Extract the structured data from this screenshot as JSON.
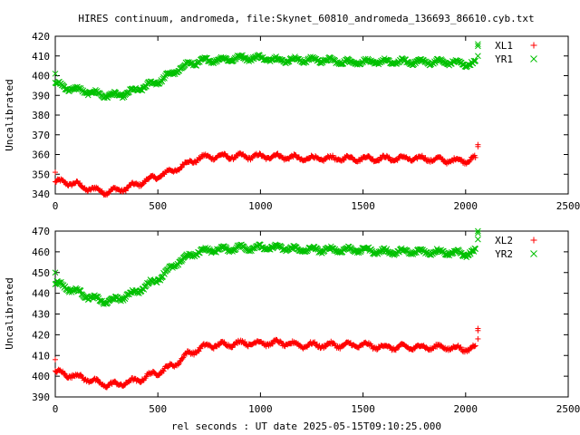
{
  "chart_data": {
    "title": "HIRES continuum, andromeda, file:Skynet_60810_andromeda_136693_86610.cyb.txt",
    "xlabel": "rel seconds : UT date 2025-05-15T09:10:25.000",
    "panels": [
      {
        "type": "scatter",
        "ylabel": "Uncalibrated",
        "xlim": [
          0,
          2500
        ],
        "ylim": [
          340,
          420
        ],
        "xticks": [
          "0",
          "500",
          "1000",
          "1500",
          "2000",
          "2500"
        ],
        "yticks": [
          "340",
          "350",
          "360",
          "370",
          "380",
          "390",
          "400",
          "410",
          "420"
        ],
        "legend_position": "top-right",
        "series": [
          {
            "name": "XL1",
            "marker": "+",
            "color": "#ff0000",
            "x": [
              0,
              50,
              100,
              150,
              200,
              250,
              300,
              350,
              400,
              450,
              500,
              550,
              600,
              650,
              700,
              750,
              800,
              900,
              1000,
              1100,
              1200,
              1300,
              1400,
              1500,
              1600,
              1700,
              1800,
              1900,
              2000,
              2050
            ],
            "y": [
              346,
              346,
              345,
              343,
              342,
              341,
              342,
              343,
              345,
              347,
              349,
              351,
              353,
              356,
              358,
              359,
              359,
              359,
              359,
              359,
              358,
              358,
              358,
              358,
              358,
              358,
              358,
              357,
              357,
              358
            ],
            "outliers": [
              [
                2060,
                364
              ],
              [
                2060,
                365
              ],
              [
                0,
                351
              ]
            ]
          },
          {
            "name": "YR1",
            "marker": "x",
            "color": "#00c000",
            "x": [
              0,
              50,
              100,
              150,
              200,
              250,
              300,
              350,
              400,
              450,
              500,
              550,
              600,
              650,
              700,
              750,
              800,
              900,
              1000,
              1100,
              1200,
              1300,
              1400,
              1500,
              1600,
              1700,
              1800,
              1900,
              2000,
              2050
            ],
            "y": [
              396,
              394,
              393,
              392,
              391,
              390,
              390,
              391,
              393,
              395,
              397,
              400,
              403,
              406,
              407,
              408,
              408,
              409,
              409,
              408,
              408,
              408,
              407,
              407,
              407,
              407,
              407,
              407,
              406,
              406
            ],
            "outliers": [
              [
                2060,
                416
              ],
              [
                2060,
                415
              ],
              [
                2060,
                410
              ],
              [
                0,
                401
              ]
            ]
          }
        ]
      },
      {
        "type": "scatter",
        "ylabel": "Uncalibrated",
        "xlim": [
          0,
          2500
        ],
        "ylim": [
          390,
          470
        ],
        "xticks": [
          "0",
          "500",
          "1000",
          "1500",
          "2000",
          "2500"
        ],
        "yticks": [
          "390",
          "400",
          "410",
          "420",
          "430",
          "440",
          "450",
          "460",
          "470"
        ],
        "legend_position": "top-right",
        "series": [
          {
            "name": "XL2",
            "marker": "+",
            "color": "#ff0000",
            "x": [
              0,
              50,
              100,
              150,
              200,
              250,
              300,
              350,
              400,
              450,
              500,
              550,
              600,
              650,
              700,
              750,
              800,
              900,
              1000,
              1100,
              1200,
              1300,
              1400,
              1500,
              1600,
              1700,
              1800,
              1900,
              2000,
              2050
            ],
            "y": [
              402,
              401,
              400,
              399,
              397,
              396,
              396,
              397,
              398,
              400,
              402,
              404,
              407,
              411,
              413,
              415,
              415,
              416,
              416,
              416,
              415,
              415,
              415,
              415,
              414,
              414,
              414,
              414,
              413,
              414
            ],
            "outliers": [
              [
                2060,
                422
              ],
              [
                2060,
                423
              ],
              [
                2060,
                418
              ],
              [
                0,
                408
              ]
            ]
          },
          {
            "name": "YR2",
            "marker": "x",
            "color": "#00c000",
            "x": [
              0,
              50,
              100,
              150,
              200,
              250,
              300,
              350,
              400,
              450,
              500,
              550,
              600,
              650,
              700,
              750,
              800,
              900,
              1000,
              1100,
              1200,
              1300,
              1400,
              1500,
              1600,
              1700,
              1800,
              1900,
              2000,
              2050
            ],
            "y": [
              445,
              443,
              441,
              439,
              437,
              436,
              437,
              439,
              441,
              444,
              447,
              451,
              455,
              458,
              460,
              461,
              461,
              462,
              462,
              462,
              461,
              461,
              461,
              461,
              460,
              460,
              460,
              460,
              459,
              460
            ],
            "outliers": [
              [
                2060,
                470
              ],
              [
                2060,
                469
              ],
              [
                2060,
                466
              ],
              [
                0,
                450
              ]
            ]
          }
        ]
      }
    ]
  }
}
